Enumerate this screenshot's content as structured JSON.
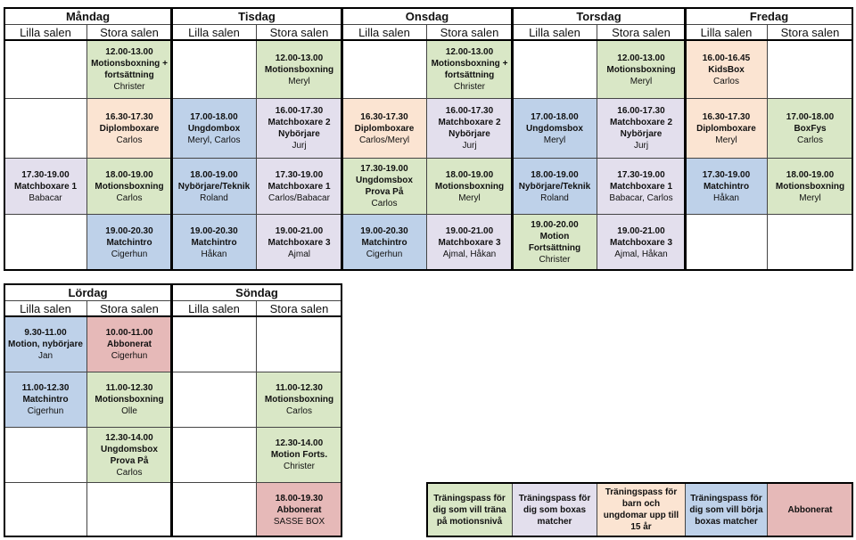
{
  "week": {
    "days": [
      {
        "name": "Måndag",
        "rooms": [
          "Lilla salen",
          "Stora salen"
        ]
      },
      {
        "name": "Tisdag",
        "rooms": [
          "Lilla salen",
          "Stora salen"
        ]
      },
      {
        "name": "Onsdag",
        "rooms": [
          "Lilla salen",
          "Stora salen"
        ]
      },
      {
        "name": "Torsdag",
        "rooms": [
          "Lilla salen",
          "Stora salen"
        ]
      },
      {
        "name": "Fredag",
        "rooms": [
          "Lilla salen",
          "Stora salen"
        ]
      }
    ],
    "rows": [
      [
        null,
        {
          "time": "12.00-13.00",
          "title": "Motionsboxning + fortsättning",
          "teacher": "Christer",
          "color": "#d9e7c6"
        },
        null,
        {
          "time": "12.00-13.00",
          "title": "Motionsboxning",
          "teacher": "Meryl",
          "color": "#d9e7c6"
        },
        null,
        {
          "time": "12.00-13.00",
          "title": "Motionsboxning + fortsättning",
          "teacher": "Christer",
          "color": "#d9e7c6"
        },
        null,
        {
          "time": "12.00-13.00",
          "title": "Motionsboxning",
          "teacher": "Meryl",
          "color": "#d9e7c6"
        },
        {
          "time": "16.00-16.45",
          "title": "KidsBox",
          "teacher": "Carlos",
          "color": "#fbe4d2"
        },
        null
      ],
      [
        null,
        {
          "time": "16.30-17.30",
          "title": "Diplomboxare",
          "teacher": "Carlos",
          "color": "#fbe4d2"
        },
        {
          "time": "17.00-18.00",
          "title": "Ungdombox",
          "teacher": "Meryl, Carlos",
          "color": "#bed1e9"
        },
        {
          "time": "16.00-17.30",
          "title": "Matchboxare 2 Nybörjare",
          "teacher": "Jurj",
          "color": "#e3dfed"
        },
        {
          "time": "16.30-17.30",
          "title": "Diplomboxare",
          "teacher": "Carlos/Meryl",
          "color": "#fbe4d2"
        },
        {
          "time": "16.00-17.30",
          "title": "Matchboxare 2 Nybörjare",
          "teacher": "Jurj",
          "color": "#e3dfed"
        },
        {
          "time": "17.00-18.00",
          "title": "Ungdomsbox",
          "teacher": "Meryl",
          "color": "#bed1e9"
        },
        {
          "time": "16.00-17.30",
          "title": "Matchboxare 2 Nybörjare",
          "teacher": "Jurj",
          "color": "#e3dfed"
        },
        {
          "time": "16.30-17.30",
          "title": "Diplomboxare",
          "teacher": "Meryl",
          "color": "#fbe4d2"
        },
        {
          "time": "17.00-18.00",
          "title": "BoxFys",
          "teacher": "Carlos",
          "color": "#d9e7c6"
        }
      ],
      [
        {
          "time": "17.30-19.00",
          "title": "Matchboxare 1",
          "teacher": "Babacar",
          "color": "#e3dfed"
        },
        {
          "time": "18.00-19.00",
          "title": "Motionsboxning",
          "teacher": "Carlos",
          "color": "#d9e7c6"
        },
        {
          "time": "18.00-19.00",
          "title": "Nybörjare/Teknik",
          "teacher": "Roland",
          "color": "#bed1e9"
        },
        {
          "time": "17.30-19.00",
          "title": "Matchboxare 1",
          "teacher": "Carlos/Babacar",
          "color": "#e3dfed"
        },
        {
          "time": "17.30-19.00",
          "title": "Ungdomsbox Prova På",
          "teacher": "Carlos",
          "color": "#d9e7c6"
        },
        {
          "time": "18.00-19.00",
          "title": "Motionsboxning",
          "teacher": "Meryl",
          "color": "#d9e7c6"
        },
        {
          "time": "18.00-19.00",
          "title": "Nybörjare/Teknik",
          "teacher": "Roland",
          "color": "#bed1e9"
        },
        {
          "time": "17.30-19.00",
          "title": "Matchboxare 1",
          "teacher": "Babacar, Carlos",
          "color": "#e3dfed"
        },
        {
          "time": "17.30-19.00",
          "title": "Matchintro",
          "teacher": "Håkan",
          "color": "#bed1e9"
        },
        {
          "time": "18.00-19.00",
          "title": "Motionsboxning",
          "teacher": "Meryl",
          "color": "#d9e7c6"
        }
      ],
      [
        null,
        {
          "time": "19.00-20.30",
          "title": "Matchintro",
          "teacher": "Cigerhun",
          "color": "#bed1e9"
        },
        {
          "time": "19.00-20.30",
          "title": "Matchintro",
          "teacher": "Håkan",
          "color": "#bed1e9"
        },
        {
          "time": "19.00-21.00",
          "title": "Matchboxare 3",
          "teacher": "Ajmal",
          "color": "#e3dfed"
        },
        {
          "time": "19.00-20.30",
          "title": "Matchintro",
          "teacher": "Cigerhun",
          "color": "#bed1e9"
        },
        {
          "time": "19.00-21.00",
          "title": "Matchboxare 3",
          "teacher": "Ajmal, Håkan",
          "color": "#e3dfed"
        },
        {
          "time": "19.00-20.00",
          "title": "Motion Fortsättning",
          "teacher": "Christer",
          "color": "#d9e7c6"
        },
        {
          "time": "19.00-21.00",
          "title": "Matchboxare 3",
          "teacher": "Ajmal, Håkan",
          "color": "#e3dfed"
        },
        null,
        null
      ]
    ]
  },
  "weekend": {
    "days": [
      {
        "name": "Lördag",
        "rooms": [
          "Lilla salen",
          "Stora salen"
        ]
      },
      {
        "name": "Söndag",
        "rooms": [
          "Lilla salen",
          "Stora salen"
        ]
      }
    ],
    "rows": [
      [
        {
          "time": "9.30-11.00",
          "title": "Motion, nybörjare",
          "teacher": "Jan",
          "color": "#bed1e9"
        },
        {
          "time": "10.00-11.00",
          "title": "Abbonerat",
          "teacher": "Cigerhun",
          "color": "#e6b9b8"
        },
        null,
        null
      ],
      [
        {
          "time": "11.00-12.30",
          "title": "Matchintro",
          "teacher": "Cigerhun",
          "color": "#bed1e9"
        },
        {
          "time": "11.00-12.30",
          "title": "Motionsboxning",
          "teacher": "Olle",
          "color": "#d9e7c6"
        },
        null,
        {
          "time": "11.00-12.30",
          "title": "Motionsboxning",
          "teacher": "Carlos",
          "color": "#d9e7c6"
        }
      ],
      [
        null,
        {
          "time": "12.30-14.00",
          "title": "Ungdomsbox Prova På",
          "teacher": "Carlos",
          "color": "#d9e7c6"
        },
        null,
        {
          "time": "12.30-14.00",
          "title": "Motion Forts.",
          "teacher": "Christer",
          "color": "#d9e7c6"
        }
      ],
      [
        null,
        null,
        null,
        {
          "time": "18.00-19.30",
          "title": "Abbonerat",
          "teacher": "SASSE BOX",
          "color": "#e6b9b8"
        }
      ]
    ]
  },
  "legend": [
    {
      "text": "Träningspass för dig som vill träna på motionsnivå",
      "color": "#d9e7c6"
    },
    {
      "text": "Träningspass för dig som boxas matcher",
      "color": "#e3dfed"
    },
    {
      "text": "Träningspass för barn och ungdomar upp till 15 år",
      "color": "#fbe4d2"
    },
    {
      "text": "Träningspass för dig som vill börja boxas matcher",
      "color": "#bed1e9"
    },
    {
      "text": "Abbonerat",
      "color": "#e6b9b8"
    }
  ]
}
